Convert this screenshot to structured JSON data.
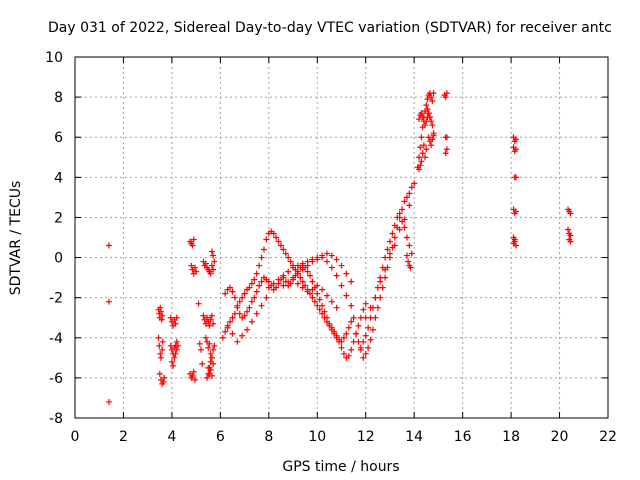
{
  "chart_data": {
    "type": "scatter",
    "title": "Day 031 of 2022, Sidereal Day-to-day VTEC variation (SDTVAR) for receiver antc",
    "xlabel": "GPS time / hours",
    "ylabel": "SDTVAR / TECUs",
    "xlim": [
      0,
      22
    ],
    "ylim": [
      -8,
      10
    ],
    "x_ticks": [
      0,
      2,
      4,
      6,
      8,
      10,
      12,
      14,
      16,
      18,
      20,
      22
    ],
    "y_ticks": [
      -8,
      -6,
      -4,
      -2,
      0,
      2,
      4,
      6,
      8,
      10
    ],
    "grid": true,
    "marker": "plus",
    "color": "#ff0000",
    "series": [
      {
        "name": "SDTVAR",
        "x": [
          1.4,
          1.4,
          1.4,
          3.45,
          3.48,
          3.5,
          3.52,
          3.55,
          3.58,
          3.6,
          3.45,
          3.48,
          3.52,
          3.55,
          3.6,
          3.62,
          3.5,
          3.55,
          3.6,
          3.65,
          3.68,
          3.95,
          4.0,
          4.05,
          4.1,
          4.15,
          4.2,
          3.95,
          4.0,
          4.05,
          4.1,
          4.15,
          4.2,
          4.0,
          4.05,
          4.1,
          4.15,
          4.2,
          4.25,
          4.75,
          4.8,
          4.85,
          4.9,
          4.8,
          4.85,
          4.9,
          4.95,
          5.0,
          4.75,
          4.8,
          4.85,
          4.9,
          4.95,
          5.1,
          5.15,
          5.2,
          5.25,
          5.3,
          5.35,
          5.4,
          5.45,
          5.5,
          5.55,
          5.6,
          5.65,
          5.7,
          5.3,
          5.35,
          5.4,
          5.45,
          5.5,
          5.55,
          5.6,
          5.65,
          5.7,
          5.4,
          5.45,
          5.5,
          5.55,
          5.6,
          5.65,
          5.7,
          5.75,
          5.5,
          5.55,
          5.6,
          5.65,
          5.7,
          5.45,
          5.5,
          5.55,
          5.6,
          5.65,
          5.65,
          5.7,
          5.75,
          6.1,
          6.2,
          6.3,
          6.4,
          6.5,
          6.6,
          6.7,
          6.8,
          6.9,
          7.0,
          7.1,
          7.2,
          7.3,
          7.4,
          7.5,
          7.6,
          7.7,
          7.8,
          7.9,
          8.0,
          8.1,
          8.2,
          8.3,
          8.4,
          8.5,
          8.6,
          8.7,
          8.8,
          8.9,
          9.0,
          9.1,
          9.2,
          9.3,
          9.4,
          9.5,
          9.6,
          9.7,
          9.8,
          9.9,
          10.0,
          10.1,
          10.2,
          10.3,
          10.4,
          10.5,
          10.6,
          10.7,
          10.8,
          10.9,
          11.0,
          11.1,
          11.2,
          11.3,
          11.4,
          11.5,
          11.6,
          11.7,
          11.8,
          11.9,
          12.0,
          6.2,
          6.3,
          6.4,
          6.5,
          6.6,
          6.7,
          6.8,
          6.9,
          7.0,
          7.1,
          7.2,
          7.3,
          7.4,
          7.5,
          7.6,
          7.7,
          7.8,
          7.9,
          6.3,
          6.5,
          6.7,
          6.9,
          7.1,
          7.3,
          7.5,
          7.7,
          7.9,
          8.0,
          8.1,
          8.2,
          8.3,
          8.4,
          8.5,
          8.6,
          8.7,
          8.8,
          8.9,
          9.0,
          9.1,
          9.2,
          9.3,
          9.4,
          9.5,
          9.6,
          9.7,
          9.8,
          9.9,
          10.0,
          10.1,
          10.2,
          10.3,
          10.4,
          10.5,
          10.6,
          10.7,
          10.8,
          10.9,
          11.0,
          11.1,
          11.2,
          11.3,
          11.4,
          11.5,
          8.0,
          8.2,
          8.4,
          8.6,
          8.8,
          9.0,
          9.2,
          9.4,
          9.6,
          9.8,
          10.0,
          10.2,
          10.4,
          10.6,
          10.8,
          11.0,
          11.2,
          11.4,
          8.6,
          8.8,
          9.0,
          9.2,
          9.4,
          9.6,
          9.8,
          10.0,
          10.2,
          10.4,
          10.6,
          10.8,
          11.0,
          11.2,
          11.4,
          9.2,
          9.4,
          9.6,
          9.8,
          10.0,
          10.2,
          10.4,
          10.6,
          10.8,
          11.6,
          11.7,
          11.8,
          11.9,
          12.0,
          12.1,
          12.2,
          12.3,
          12.4,
          12.5,
          12.6,
          12.7,
          12.8,
          12.9,
          13.0,
          13.1,
          13.2,
          13.3,
          13.4,
          13.5,
          13.6,
          13.7,
          13.8,
          13.9,
          14.0,
          11.8,
          11.9,
          12.0,
          12.1,
          12.2,
          12.3,
          12.4,
          12.5,
          12.6,
          12.7,
          12.8,
          12.9,
          13.0,
          13.1,
          13.2,
          13.3,
          13.4,
          13.5,
          13.6,
          13.7,
          13.8,
          13.9,
          12.0,
          12.2,
          12.4,
          12.6,
          12.8,
          13.0,
          13.2,
          13.4,
          13.6,
          13.8,
          13.7,
          13.75,
          13.8,
          13.85,
          14.15,
          14.2,
          14.25,
          14.3,
          14.35,
          14.4,
          14.45,
          14.5,
          14.55,
          14.6,
          14.65,
          14.7,
          14.75,
          14.8,
          14.2,
          14.25,
          14.3,
          14.35,
          14.4,
          14.45,
          14.5,
          14.55,
          14.6,
          14.65,
          14.2,
          14.25,
          14.3,
          14.35,
          14.4,
          14.45,
          14.5,
          14.55,
          14.6,
          14.65,
          14.7,
          14.75,
          14.8,
          14.6,
          14.65,
          14.7,
          14.75,
          14.8,
          15.25,
          15.3,
          15.35,
          15.3,
          15.35,
          15.3,
          15.35,
          18.1,
          18.15,
          18.2,
          18.1,
          18.15,
          18.2,
          18.15,
          18.2,
          18.1,
          18.15,
          18.2,
          18.1,
          18.15,
          18.2,
          18.1,
          18.15,
          20.35,
          20.4,
          20.45,
          20.35,
          20.4,
          20.45,
          20.4,
          20.45
        ],
        "y": [
          0.6,
          -2.2,
          -7.2,
          -2.6,
          -2.8,
          -3.0,
          -2.5,
          -2.7,
          -3.1,
          -2.9,
          -4.0,
          -4.4,
          -4.8,
          -5.0,
          -4.6,
          -4.2,
          -5.8,
          -6.1,
          -6.3,
          -6.2,
          -6.0,
          -3.0,
          -3.2,
          -3.4,
          -3.1,
          -3.3,
          -3.0,
          -4.4,
          -4.6,
          -4.8,
          -4.5,
          -4.4,
          -4.2,
          -5.2,
          -5.4,
          -5.0,
          -4.8,
          -4.6,
          -4.4,
          0.8,
          0.7,
          0.6,
          0.9,
          -0.4,
          -0.6,
          -0.8,
          -0.5,
          -0.7,
          -5.8,
          -6.0,
          -5.9,
          -5.7,
          -6.1,
          -2.3,
          -4.3,
          -4.6,
          -5.3,
          -0.2,
          -0.4,
          -0.3,
          -0.5,
          -0.6,
          -0.7,
          -0.8,
          -0.4,
          -0.6,
          -2.9,
          -3.1,
          -3.3,
          -3.0,
          -3.2,
          -3.4,
          -3.1,
          -2.9,
          -3.3,
          -4.0,
          -4.2,
          -4.5,
          -4.3,
          -4.8,
          -5.0,
          -4.6,
          -4.4,
          -5.5,
          -5.8,
          -5.6,
          -5.9,
          -5.3,
          -6.0,
          -5.8,
          -5.5,
          -5.2,
          -5.0,
          0.3,
          0.1,
          -0.2,
          -4.0,
          -3.7,
          -3.5,
          -3.2,
          -3.0,
          -2.8,
          -2.5,
          -2.2,
          -2.0,
          -1.8,
          -1.6,
          -1.5,
          -1.3,
          -1.1,
          -0.8,
          -0.4,
          0.0,
          0.4,
          0.9,
          1.2,
          1.3,
          1.2,
          1.0,
          0.8,
          0.6,
          0.4,
          0.2,
          0.0,
          -0.2,
          -0.4,
          -0.6,
          -0.8,
          -1.0,
          -1.2,
          -1.4,
          -1.6,
          -1.8,
          -2.0,
          -2.2,
          -2.4,
          -2.6,
          -2.8,
          -3.0,
          -3.2,
          -3.4,
          -3.6,
          -3.8,
          -4.0,
          -4.2,
          -4.5,
          -4.8,
          -5.0,
          -4.9,
          -4.6,
          -4.2,
          -3.8,
          -3.4,
          -3.0,
          -2.6,
          -2.3,
          -1.8,
          -1.6,
          -1.5,
          -1.7,
          -2.0,
          -2.4,
          -2.8,
          -3.0,
          -2.9,
          -2.7,
          -2.5,
          -2.2,
          -2.0,
          -1.7,
          -1.4,
          -1.2,
          -1.0,
          -1.1,
          -3.4,
          -3.8,
          -4.2,
          -3.9,
          -3.6,
          -3.2,
          -2.8,
          -2.4,
          -2.0,
          -1.2,
          -1.4,
          -1.6,
          -1.5,
          -1.3,
          -1.1,
          -1.0,
          -1.2,
          -1.4,
          -1.3,
          -1.1,
          -0.9,
          -0.7,
          -0.5,
          -0.4,
          -0.5,
          -0.7,
          -0.9,
          -1.2,
          -1.5,
          -1.8,
          -2.1,
          -2.4,
          -2.7,
          -3.0,
          -3.3,
          -3.5,
          -3.7,
          -3.9,
          -4.1,
          -4.2,
          -4.0,
          -3.8,
          -3.5,
          -3.2,
          -3.0,
          -1.5,
          -1.3,
          -1.1,
          -0.9,
          -0.7,
          -0.5,
          -0.4,
          -0.3,
          -0.2,
          -0.1,
          0.0,
          0.1,
          0.2,
          0.1,
          -0.1,
          -0.4,
          -0.8,
          -1.2,
          -1.4,
          -1.2,
          -1.0,
          -0.8,
          -0.6,
          -0.4,
          -0.2,
          -0.1,
          0.0,
          -0.2,
          -0.5,
          -0.9,
          -1.4,
          -1.9,
          -2.4,
          -1.3,
          -1.5,
          -1.7,
          -1.6,
          -1.4,
          -1.6,
          -1.9,
          -2.2,
          -2.5,
          -3.8,
          -4.2,
          -4.6,
          -5.0,
          -4.8,
          -4.5,
          -4.1,
          -3.6,
          -3.0,
          -2.5,
          -2.0,
          -1.5,
          -1.0,
          -0.5,
          0.0,
          0.5,
          1.0,
          1.5,
          2.0,
          2.4,
          2.8,
          3.0,
          3.2,
          3.5,
          3.7,
          -4.5,
          -4.2,
          -3.9,
          -3.5,
          -3.0,
          -2.5,
          -2.0,
          -1.5,
          -1.0,
          -0.5,
          0.0,
          0.4,
          0.8,
          1.2,
          1.6,
          2.0,
          2.2,
          1.8,
          1.5,
          1.0,
          0.6,
          0.2,
          -3.0,
          -2.5,
          -2.0,
          -1.2,
          -0.6,
          0.2,
          0.6,
          1.4,
          1.9,
          2.6,
          0.1,
          -0.2,
          -0.4,
          -0.5,
          4.5,
          5.0,
          5.5,
          6.0,
          6.5,
          7.0,
          7.3,
          7.6,
          7.9,
          8.1,
          8.2,
          8.0,
          7.8,
          8.2,
          6.9,
          7.1,
          7.2,
          7.0,
          6.8,
          6.6,
          6.8,
          7.0,
          7.2,
          7.0,
          4.4,
          4.6,
          4.8,
          5.2,
          5.6,
          5.0,
          5.4,
          7.4,
          7.2,
          7.0,
          6.8,
          6.6,
          6.2,
          6.0,
          5.8,
          5.6,
          5.9,
          6.1,
          8.1,
          8.0,
          8.2,
          6.0,
          6.0,
          5.2,
          5.4,
          6.0,
          5.8,
          5.9,
          5.5,
          5.3,
          5.4,
          4.0,
          4.0,
          2.4,
          2.2,
          2.3,
          1.0,
          0.8,
          0.6,
          0.7,
          0.9,
          2.4,
          2.3,
          2.2,
          1.4,
          1.2,
          1.1,
          0.9,
          0.8
        ]
      }
    ]
  }
}
